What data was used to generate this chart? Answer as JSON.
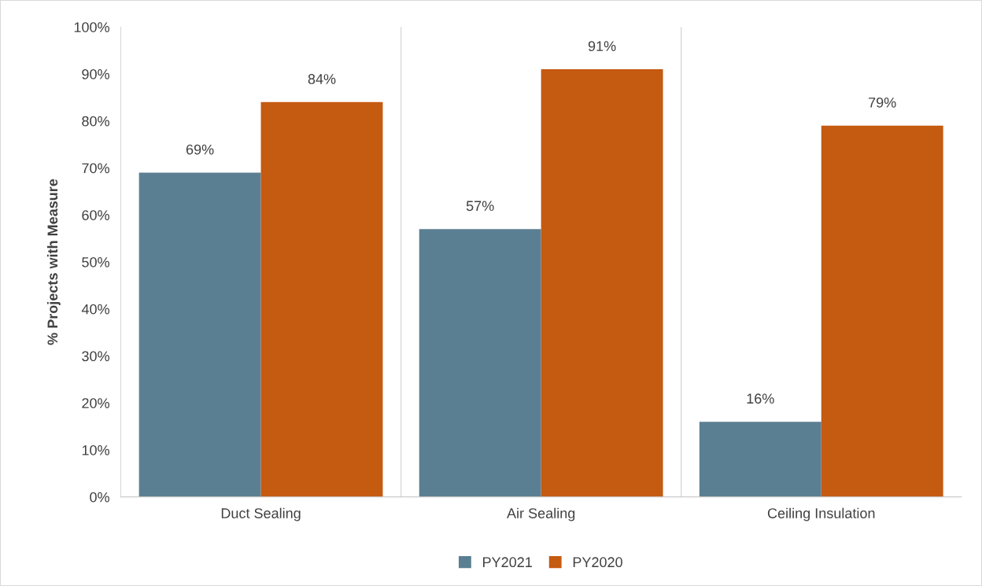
{
  "chart_data": {
    "type": "bar",
    "ylabel": "% Projects with Measure",
    "categories": [
      "Duct Sealing",
      "Air Sealing",
      "Ceiling Insulation"
    ],
    "series": [
      {
        "name": "PY2021",
        "color": "#5b7f92",
        "values": [
          69,
          57,
          16
        ],
        "value_labels": [
          "69%",
          "57%",
          "16%"
        ]
      },
      {
        "name": "PY2020",
        "color": "#c55a11",
        "values": [
          84,
          91,
          79
        ],
        "value_labels": [
          "84%",
          "91%",
          "79%"
        ]
      }
    ],
    "ylim": [
      0,
      100
    ],
    "yticks": [
      {
        "value": 0,
        "label": "0%"
      },
      {
        "value": 10,
        "label": "10%"
      },
      {
        "value": 20,
        "label": "20%"
      },
      {
        "value": 30,
        "label": "30%"
      },
      {
        "value": 40,
        "label": "40%"
      },
      {
        "value": 50,
        "label": "50%"
      },
      {
        "value": 60,
        "label": "60%"
      },
      {
        "value": 70,
        "label": "70%"
      },
      {
        "value": 80,
        "label": "80%"
      },
      {
        "value": 90,
        "label": "90%"
      },
      {
        "value": 100,
        "label": "100%"
      }
    ],
    "grid": "x",
    "legend": "bottom"
  }
}
